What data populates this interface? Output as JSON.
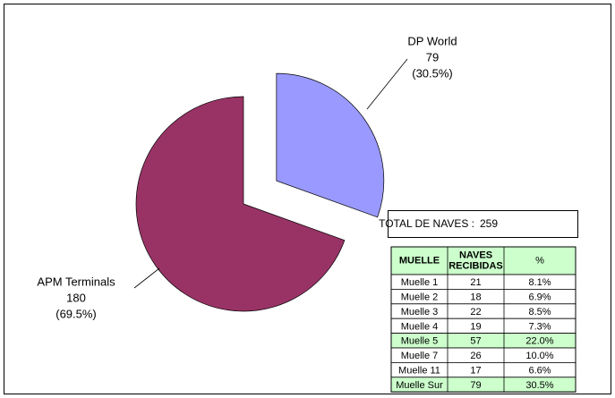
{
  "chart_data": {
    "type": "pie",
    "categories": [
      "DP World",
      "APM Terminals"
    ],
    "values": [
      79,
      180
    ],
    "percent_labels": [
      "(30.5%)",
      "(69.5%)"
    ],
    "colors": [
      "#9999ff",
      "#993366"
    ],
    "exploded": [
      true,
      false
    ]
  },
  "table": {
    "total_label": "TOTAL DE NAVES :",
    "total_value": "259",
    "header": [
      "MUELLE",
      "NAVES RECIBIDAS",
      "%"
    ],
    "rows": [
      [
        "Muelle 1",
        "21",
        "8.1%"
      ],
      [
        "Muelle 2",
        "18",
        "6.9%"
      ],
      [
        "Muelle 3",
        "22",
        "8.5%"
      ],
      [
        "Muelle 4",
        "19",
        "7.3%"
      ],
      [
        "Muelle 5",
        "57",
        "22.0%"
      ],
      [
        "Muelle 7",
        "26",
        "10.0%"
      ],
      [
        "Muelle 11",
        "17",
        "6.6%"
      ],
      [
        "Muelle Sur",
        "79",
        "30.5%"
      ]
    ],
    "header_color": "#ccffcc",
    "highlight_rows": [
      4,
      7
    ],
    "highlight_color": "#ccffcc"
  }
}
